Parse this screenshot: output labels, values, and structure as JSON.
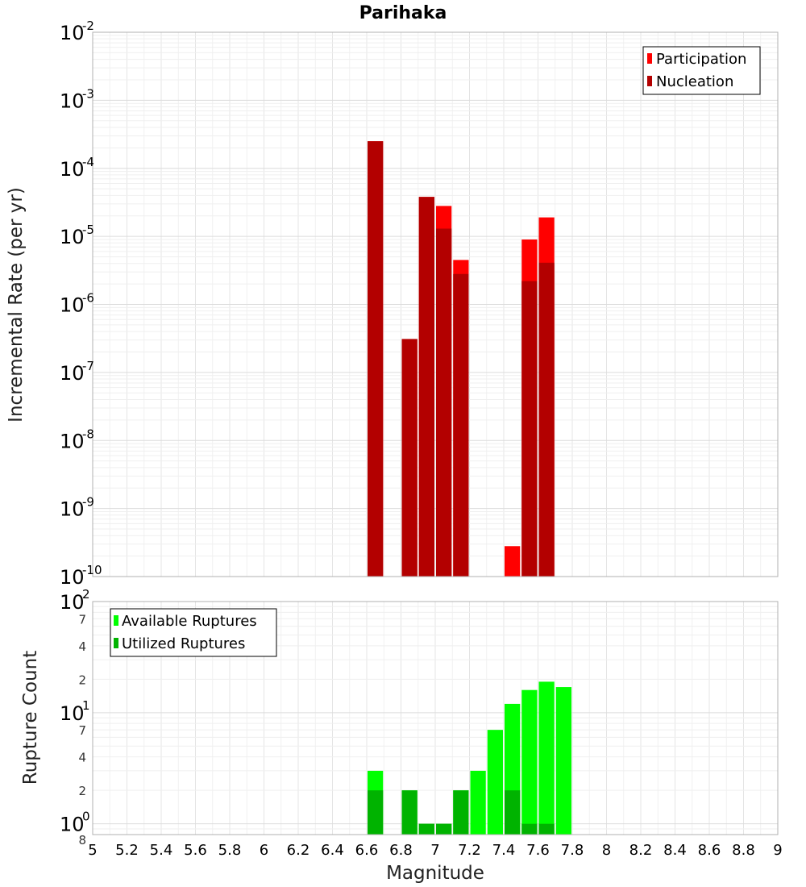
{
  "chart_data": [
    {
      "type": "bar",
      "title": "Parihaka",
      "ylabel": "Incremental Rate (per yr)",
      "xlabel": "",
      "xlim": [
        5,
        9
      ],
      "ylim": [
        1e-10,
        0.01
      ],
      "y_scale": "log",
      "bar_width": 0.1,
      "grid": true,
      "legend_placement": "top-right",
      "y_ticks": [
        {
          "base": "10",
          "exp": "-10",
          "value": 1e-10
        },
        {
          "base": "10",
          "exp": "-9",
          "value": 1e-09
        },
        {
          "base": "10",
          "exp": "-8",
          "value": 1e-08
        },
        {
          "base": "10",
          "exp": "-7",
          "value": 1e-07
        },
        {
          "base": "10",
          "exp": "-6",
          "value": 1e-06
        },
        {
          "base": "10",
          "exp": "-5",
          "value": 1e-05
        },
        {
          "base": "10",
          "exp": "-4",
          "value": 0.0001
        },
        {
          "base": "10",
          "exp": "-3",
          "value": 0.001
        },
        {
          "base": "10",
          "exp": "-2",
          "value": 0.01
        }
      ],
      "series": [
        {
          "name": "Participation",
          "color": "#ff0000",
          "x": [
            6.65,
            6.85,
            6.95,
            7.05,
            7.15,
            7.45,
            7.55,
            7.65
          ],
          "values": [
            0.00025,
            3.1e-07,
            3.8e-05,
            2.8e-05,
            4.5e-06,
            2.8e-10,
            9e-06,
            1.9e-05
          ]
        },
        {
          "name": "Nucleation",
          "color": "#b30000",
          "x": [
            6.65,
            6.85,
            6.95,
            7.05,
            7.15,
            7.55,
            7.65
          ],
          "values": [
            0.00025,
            3.1e-07,
            3.8e-05,
            1.3e-05,
            2.8e-06,
            2.2e-06,
            4.1e-06
          ]
        }
      ]
    },
    {
      "type": "bar",
      "title": "",
      "ylabel": "Rupture Count",
      "xlabel": "Magnitude",
      "xlim": [
        5,
        9
      ],
      "ylim": [
        0.8,
        100
      ],
      "y_scale": "log",
      "bar_width": 0.1,
      "grid": true,
      "legend_placement": "top-left",
      "x_ticks": [
        "5",
        "5.2",
        "5.4",
        "5.6",
        "5.8",
        "6",
        "6.2",
        "6.4",
        "6.6",
        "6.8",
        "7",
        "7.2",
        "7.4",
        "7.6",
        "7.8",
        "8",
        "8.2",
        "8.4",
        "8.6",
        "8.8",
        "9"
      ],
      "y_major_ticks": [
        {
          "base": "10",
          "exp": "0",
          "value": 1
        },
        {
          "base": "10",
          "exp": "1",
          "value": 10
        },
        {
          "base": "10",
          "exp": "2",
          "value": 100
        }
      ],
      "y_minor_ticks": [
        {
          "label": "8",
          "value": 0.8
        },
        {
          "label": "2",
          "value": 2
        },
        {
          "label": "4",
          "value": 4
        },
        {
          "label": "7",
          "value": 7
        },
        {
          "label": "2",
          "value": 20
        },
        {
          "label": "4",
          "value": 40
        },
        {
          "label": "7",
          "value": 70
        }
      ],
      "series": [
        {
          "name": "Available Ruptures",
          "color": "#00ff00",
          "x": [
            6.65,
            6.85,
            6.95,
            7.05,
            7.15,
            7.25,
            7.35,
            7.45,
            7.55,
            7.65,
            7.75
          ],
          "values": [
            3,
            2,
            1,
            1,
            2,
            3,
            7,
            12,
            16,
            19,
            17
          ]
        },
        {
          "name": "Utilized Ruptures",
          "color": "#00b300",
          "x": [
            6.65,
            6.85,
            6.95,
            7.05,
            7.15,
            7.45,
            7.55,
            7.65
          ],
          "values": [
            2,
            2,
            1,
            1,
            2,
            2,
            1,
            1
          ]
        }
      ]
    }
  ]
}
